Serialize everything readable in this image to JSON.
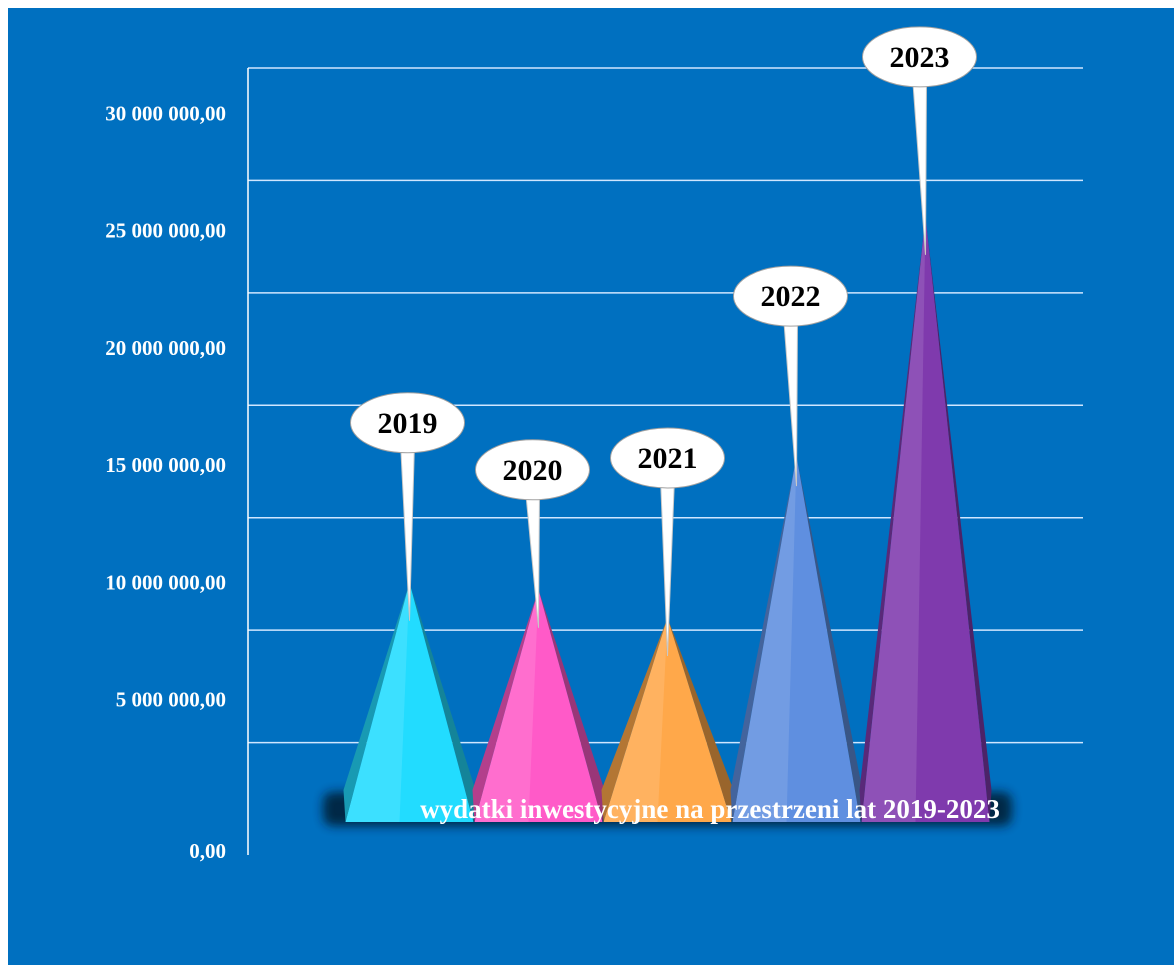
{
  "chart_data": {
    "type": "bar",
    "shape": "cone",
    "categories": [
      "2019",
      "2020",
      "2021",
      "2022",
      "2023"
    ],
    "values": [
      10200000,
      9900000,
      8700000,
      15600000,
      25800000
    ],
    "xlabel": "wydatki inwestycyjne na przestrzeni lat 2019-2023",
    "ylabel": "",
    "ylim": [
      0,
      33000000
    ],
    "yticks": [
      "0,00",
      "5 000 000,00",
      "10 000 000,00",
      "15 000 000,00",
      "20 000 000,00",
      "25 000 000,00",
      "30 000 000,00"
    ],
    "ytick_values": [
      0,
      5000000,
      10000000,
      15000000,
      20000000,
      25000000,
      30000000
    ],
    "grid": true,
    "data_labels": "callouts",
    "colors": [
      "#22dcff",
      "#ff5ac8",
      "#ffa84a",
      "#5f8fe0",
      "#7f3aad"
    ],
    "background": "#0070c0"
  }
}
